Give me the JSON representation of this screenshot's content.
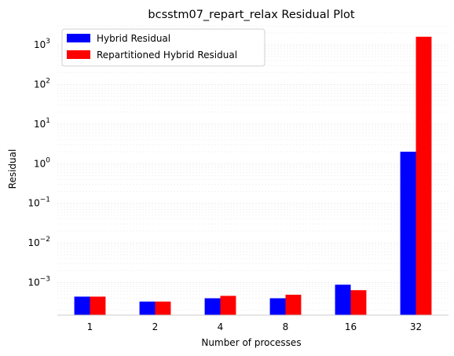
{
  "chart_data": {
    "type": "bar",
    "title": "bcsstm07_repart_relax Residual Plot",
    "xlabel": "Number of processes",
    "ylabel": "Residual",
    "yscale": "log",
    "ylim": [
      0.00015,
      3000
    ],
    "y_tick_exponents": [
      "3",
      "2",
      "1",
      "0",
      "−1",
      "−2",
      "−3"
    ],
    "y_tick_values": [
      1000,
      100,
      10,
      1,
      0.1,
      0.01,
      0.001
    ],
    "categories": [
      "1",
      "2",
      "4",
      "8",
      "16",
      "32"
    ],
    "series": [
      {
        "name": "Hybrid Residual",
        "color": "#0000ff",
        "values": [
          0.00044,
          0.00033,
          0.0004,
          0.0004,
          0.00088,
          2.0
        ]
      },
      {
        "name": "Repartitioned Hybrid Residual",
        "color": "#ff0000",
        "values": [
          0.00044,
          0.00033,
          0.00046,
          0.00049,
          0.00064,
          1600
        ]
      }
    ],
    "grid": true,
    "legend_position": "top-left"
  }
}
